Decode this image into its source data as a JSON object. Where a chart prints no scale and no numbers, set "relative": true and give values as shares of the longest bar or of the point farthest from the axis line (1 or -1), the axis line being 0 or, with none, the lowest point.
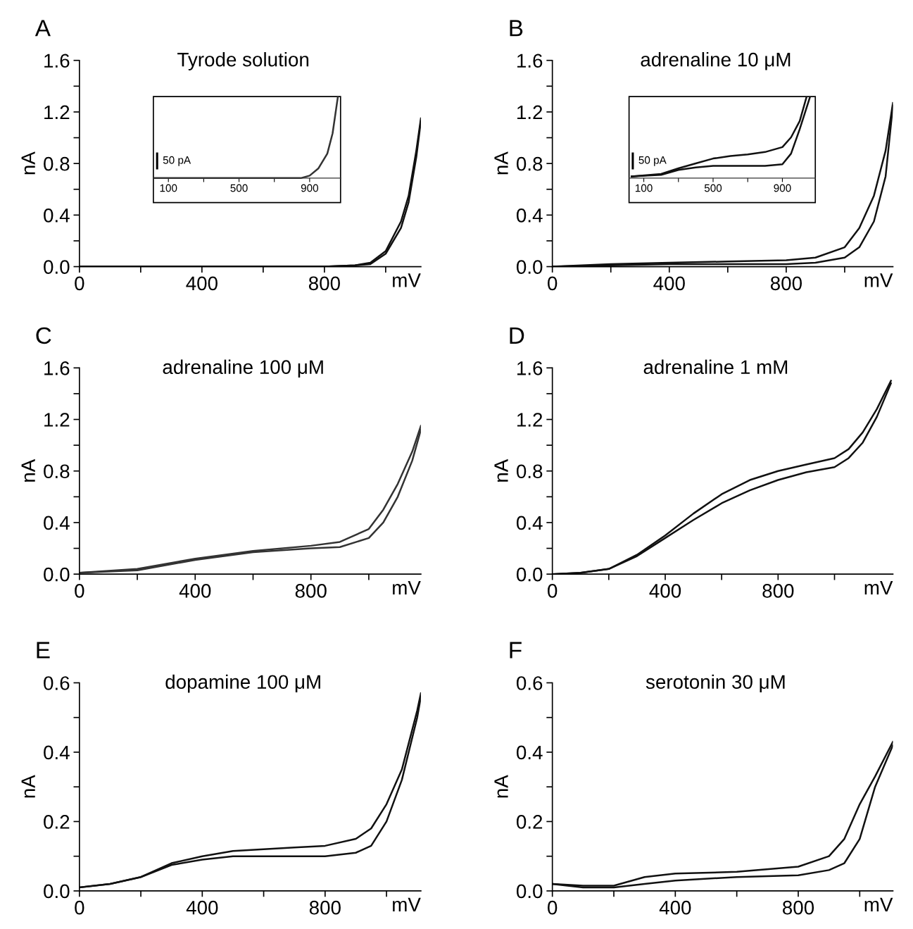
{
  "chart_data": [
    {
      "type": "line",
      "title": "Tyrode solution",
      "xlabel": "mV",
      "ylabel": "nA",
      "annotations": [
        "A"
      ],
      "xlim": [
        0,
        1115
      ],
      "ylim": [
        0,
        1.6
      ],
      "xticks": [
        0,
        {
          "value": 200,
          "label": null
        },
        400,
        {
          "value": 600,
          "label": null
        },
        800,
        {
          "value": 1000,
          "label": null
        }
      ],
      "yticks": [
        {
          "value": 0,
          "label": "0.0"
        },
        {
          "value": 0.2,
          "label": null
        },
        {
          "value": 0.4,
          "label": "0.4"
        },
        {
          "value": 0.6,
          "label": null
        },
        {
          "value": 0.8,
          "label": "0.8"
        },
        {
          "value": 1.0,
          "label": null
        },
        {
          "value": 1.2,
          "label": "1.2"
        },
        {
          "value": 1.4,
          "label": null
        },
        {
          "value": 1.6,
          "label": "1.6"
        }
      ],
      "series": [
        {
          "color": "#111111",
          "x": [
            0,
            200,
            400,
            600,
            800,
            900,
            950,
            1000,
            1050,
            1075,
            1100,
            1115
          ],
          "values": [
            0,
            0,
            0,
            0,
            0,
            0.01,
            0.03,
            0.12,
            0.35,
            0.55,
            0.9,
            1.15
          ]
        },
        {
          "color": "#111111",
          "x": [
            0,
            200,
            400,
            600,
            800,
            900,
            950,
            1000,
            1050,
            1075,
            1100,
            1115
          ],
          "values": [
            0,
            0,
            0,
            0,
            0,
            0.01,
            0.02,
            0.1,
            0.3,
            0.5,
            0.85,
            1.13
          ]
        }
      ]
    },
    {
      "type": "line",
      "relative": true,
      "annotations": [
        "50 pA"
      ],
      "xlim": [
        15,
        1075
      ],
      "xticks": [
        100,
        {
          "value": 300,
          "label": null
        },
        500,
        {
          "value": 700,
          "label": null
        },
        900
      ],
      "series": [
        {
          "color": "#333333",
          "x": [
            20,
            200,
            400,
            600,
            800,
            850,
            900,
            950,
            1000,
            1030,
            1060
          ],
          "values": [
            0,
            0,
            0,
            0,
            0,
            0,
            0.03,
            0.12,
            0.3,
            0.55,
            1
          ]
        }
      ]
    },
    {
      "type": "line",
      "title": "adrenaline 10 μM",
      "xlabel": "mV",
      "ylabel": "nA",
      "annotations": [
        "B"
      ],
      "xlim": [
        0,
        1165
      ],
      "ylim": [
        0,
        1.6
      ],
      "xticks": [
        0,
        {
          "value": 200,
          "label": null
        },
        400,
        {
          "value": 600,
          "label": null
        },
        800,
        {
          "value": 1000,
          "label": null
        }
      ],
      "yticks": [
        {
          "value": 0,
          "label": "0.0"
        },
        {
          "value": 0.2,
          "label": null
        },
        {
          "value": 0.4,
          "label": "0.4"
        },
        {
          "value": 0.6,
          "label": null
        },
        {
          "value": 0.8,
          "label": "0.8"
        },
        {
          "value": 1.0,
          "label": null
        },
        {
          "value": 1.2,
          "label": "1.2"
        },
        {
          "value": 1.4,
          "label": null
        },
        {
          "value": 1.6,
          "label": "1.6"
        }
      ],
      "series": [
        {
          "color": "#111111",
          "x": [
            0,
            200,
            400,
            600,
            800,
            900,
            1000,
            1050,
            1100,
            1140,
            1165
          ],
          "values": [
            0,
            0.02,
            0.03,
            0.04,
            0.05,
            0.07,
            0.15,
            0.3,
            0.55,
            0.9,
            1.27
          ]
        },
        {
          "color": "#111111",
          "x": [
            0,
            200,
            400,
            600,
            800,
            900,
            1000,
            1050,
            1100,
            1140,
            1165
          ],
          "values": [
            0,
            0.01,
            0.02,
            0.02,
            0.02,
            0.03,
            0.07,
            0.15,
            0.35,
            0.7,
            1.25
          ]
        }
      ]
    },
    {
      "type": "line",
      "relative": true,
      "annotations": [
        "50 pA"
      ],
      "xlim": [
        15,
        1090
      ],
      "xticks": [
        100,
        {
          "value": 300,
          "label": null
        },
        500,
        {
          "value": 700,
          "label": null
        },
        900
      ],
      "series": [
        {
          "color": "#111111",
          "x": [
            30,
            200,
            300,
            400,
            500,
            600,
            700,
            800,
            900,
            950,
            1000,
            1040
          ],
          "values": [
            0.02,
            0.05,
            0.12,
            0.18,
            0.24,
            0.27,
            0.29,
            0.32,
            0.38,
            0.5,
            0.7,
            1
          ]
        },
        {
          "color": "#111111",
          "x": [
            30,
            200,
            300,
            400,
            500,
            600,
            800,
            900,
            950,
            1000,
            1060
          ],
          "values": [
            0.02,
            0.04,
            0.1,
            0.13,
            0.15,
            0.15,
            0.15,
            0.17,
            0.3,
            0.6,
            1
          ]
        }
      ]
    },
    {
      "type": "line",
      "title": "adrenaline 100 μM",
      "xlabel": "mV",
      "ylabel": "nA",
      "annotations": [
        "C"
      ],
      "xlim": [
        0,
        1180
      ],
      "ylim": [
        0,
        1.6
      ],
      "xticks": [
        0,
        {
          "value": 200,
          "label": null
        },
        400,
        {
          "value": 600,
          "label": null
        },
        800,
        {
          "value": 1000,
          "label": null
        }
      ],
      "yticks": [
        {
          "value": 0,
          "label": "0.0"
        },
        {
          "value": 0.2,
          "label": null
        },
        {
          "value": 0.4,
          "label": "0.4"
        },
        {
          "value": 0.6,
          "label": null
        },
        {
          "value": 0.8,
          "label": "0.8"
        },
        {
          "value": 1.0,
          "label": null
        },
        {
          "value": 1.2,
          "label": "1.2"
        },
        {
          "value": 1.4,
          "label": null
        },
        {
          "value": 1.6,
          "label": "1.6"
        }
      ],
      "series": [
        {
          "color": "#333333",
          "x": [
            0,
            200,
            400,
            600,
            800,
            900,
            1000,
            1050,
            1100,
            1150,
            1180
          ],
          "values": [
            0.01,
            0.04,
            0.12,
            0.18,
            0.22,
            0.25,
            0.35,
            0.5,
            0.7,
            0.95,
            1.15
          ]
        },
        {
          "color": "#333333",
          "x": [
            0,
            200,
            400,
            600,
            800,
            900,
            1000,
            1050,
            1100,
            1150,
            1180
          ],
          "values": [
            0.01,
            0.03,
            0.11,
            0.17,
            0.2,
            0.21,
            0.28,
            0.4,
            0.6,
            0.88,
            1.12
          ]
        }
      ]
    },
    {
      "type": "line",
      "title": "adrenaline 1 mM",
      "xlabel": "mV",
      "ylabel": "nA",
      "annotations": [
        "D"
      ],
      "xlim": [
        0,
        1207
      ],
      "ylim": [
        0,
        1.6
      ],
      "xticks": [
        0,
        {
          "value": 200,
          "label": null
        },
        400,
        {
          "value": 600,
          "label": null
        },
        800,
        {
          "value": 1000,
          "label": null
        }
      ],
      "yticks": [
        {
          "value": 0,
          "label": "0.0"
        },
        {
          "value": 0.2,
          "label": null
        },
        {
          "value": 0.4,
          "label": "0.4"
        },
        {
          "value": 0.6,
          "label": null
        },
        {
          "value": 0.8,
          "label": "0.8"
        },
        {
          "value": 1.0,
          "label": null
        },
        {
          "value": 1.2,
          "label": "1.2"
        },
        {
          "value": 1.4,
          "label": null
        },
        {
          "value": 1.6,
          "label": "1.6"
        }
      ],
      "series": [
        {
          "color": "#111111",
          "x": [
            0,
            100,
            200,
            300,
            400,
            500,
            600,
            700,
            800,
            900,
            1000,
            1050,
            1100,
            1150,
            1200
          ],
          "values": [
            0,
            0.01,
            0.04,
            0.15,
            0.3,
            0.47,
            0.62,
            0.73,
            0.8,
            0.85,
            0.9,
            0.97,
            1.1,
            1.28,
            1.5
          ]
        },
        {
          "color": "#111111",
          "x": [
            0,
            100,
            200,
            300,
            400,
            500,
            600,
            700,
            800,
            900,
            1000,
            1050,
            1100,
            1150,
            1200
          ],
          "values": [
            0,
            0.01,
            0.04,
            0.14,
            0.28,
            0.42,
            0.55,
            0.65,
            0.73,
            0.79,
            0.83,
            0.9,
            1.02,
            1.22,
            1.48
          ]
        }
      ]
    },
    {
      "type": "line",
      "title": "dopamine 100 μM",
      "xlabel": "mV",
      "ylabel": "nA",
      "annotations": [
        "E"
      ],
      "xlim": [
        0,
        1112
      ],
      "ylim": [
        0,
        0.6
      ],
      "xticks": [
        0,
        {
          "value": 200,
          "label": null
        },
        400,
        {
          "value": 600,
          "label": null
        },
        800,
        {
          "value": 1000,
          "label": null
        }
      ],
      "yticks": [
        {
          "value": 0,
          "label": "0.0"
        },
        {
          "value": 0.1,
          "label": null
        },
        {
          "value": 0.2,
          "label": "0.2"
        },
        {
          "value": 0.3,
          "label": null
        },
        {
          "value": 0.4,
          "label": "0.4"
        },
        {
          "value": 0.5,
          "label": null
        },
        {
          "value": 0.6,
          "label": "0.6"
        }
      ],
      "series": [
        {
          "color": "#111111",
          "x": [
            0,
            100,
            200,
            300,
            400,
            500,
            600,
            700,
            800,
            900,
            950,
            1000,
            1050,
            1100,
            1112
          ],
          "values": [
            0.01,
            0.02,
            0.04,
            0.08,
            0.1,
            0.115,
            0.12,
            0.125,
            0.13,
            0.15,
            0.18,
            0.25,
            0.35,
            0.52,
            0.57
          ]
        },
        {
          "color": "#111111",
          "x": [
            0,
            100,
            200,
            300,
            400,
            500,
            600,
            700,
            800,
            900,
            950,
            1000,
            1050,
            1100,
            1112
          ],
          "values": [
            0.01,
            0.02,
            0.04,
            0.075,
            0.09,
            0.1,
            0.1,
            0.1,
            0.1,
            0.11,
            0.13,
            0.2,
            0.32,
            0.5,
            0.56
          ]
        }
      ]
    },
    {
      "type": "line",
      "title": "serotonin 30 μM",
      "xlabel": "mV",
      "ylabel": "nA",
      "annotations": [
        "F"
      ],
      "xlim": [
        0,
        1108
      ],
      "ylim": [
        0,
        0.6
      ],
      "xticks": [
        0,
        {
          "value": 200,
          "label": null
        },
        400,
        {
          "value": 600,
          "label": null
        },
        800,
        {
          "value": 1000,
          "label": null
        }
      ],
      "yticks": [
        {
          "value": 0,
          "label": "0.0"
        },
        {
          "value": 0.1,
          "label": null
        },
        {
          "value": 0.2,
          "label": "0.2"
        },
        {
          "value": 0.3,
          "label": null
        },
        {
          "value": 0.4,
          "label": "0.4"
        },
        {
          "value": 0.5,
          "label": null
        },
        {
          "value": 0.6,
          "label": "0.6"
        }
      ],
      "series": [
        {
          "color": "#111111",
          "x": [
            0,
            100,
            200,
            300,
            400,
            600,
            800,
            900,
            950,
            1000,
            1050,
            1108
          ],
          "values": [
            0.02,
            0.015,
            0.015,
            0.04,
            0.05,
            0.055,
            0.07,
            0.1,
            0.15,
            0.25,
            0.33,
            0.43
          ]
        },
        {
          "color": "#111111",
          "x": [
            0,
            100,
            200,
            300,
            400,
            600,
            800,
            900,
            950,
            1000,
            1050,
            1108
          ],
          "values": [
            0.02,
            0.01,
            0.01,
            0.02,
            0.03,
            0.04,
            0.045,
            0.06,
            0.08,
            0.15,
            0.3,
            0.42
          ]
        }
      ]
    }
  ]
}
